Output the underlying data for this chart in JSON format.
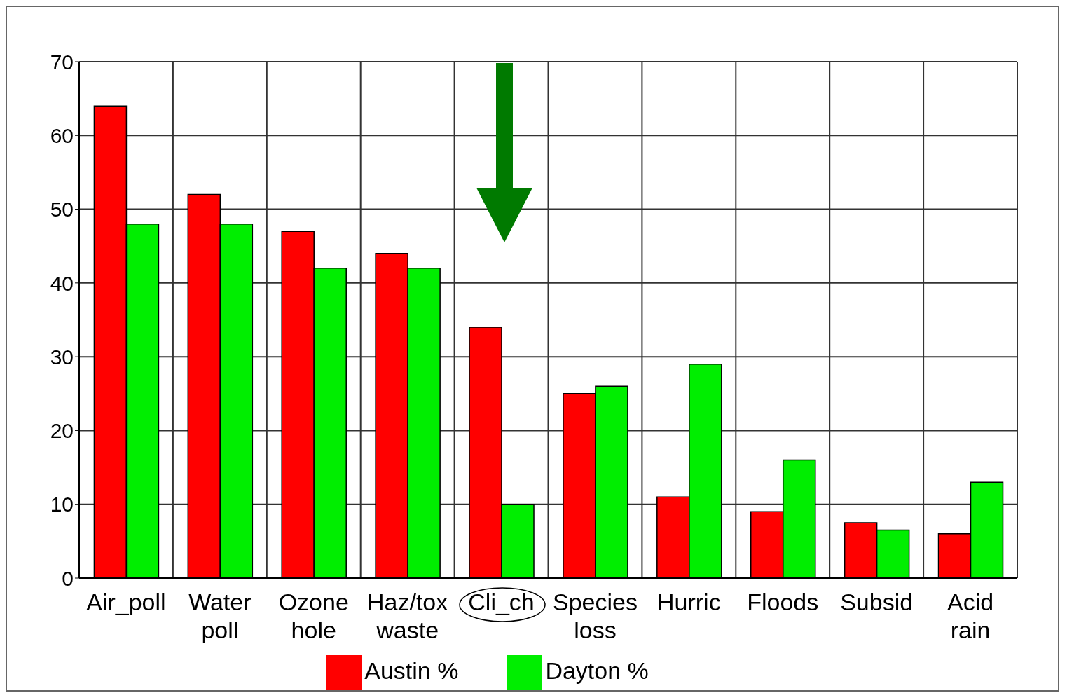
{
  "chart_data": {
    "type": "bar",
    "categories": [
      "Air_poll",
      "Water poll",
      "Ozone hole",
      "Haz/tox waste",
      "Cli_ch",
      "Species loss",
      "Hurric",
      "Floods",
      "Subsid",
      "Acid rain"
    ],
    "series": [
      {
        "name": "Austin %",
        "color": "#ff0000",
        "values": [
          64,
          52,
          47,
          44,
          34,
          25,
          11,
          9,
          7.5,
          6
        ]
      },
      {
        "name": "Dayton %",
        "color": "#00ee00",
        "values": [
          48,
          48,
          42,
          42,
          10,
          26,
          29,
          16,
          6.5,
          13
        ]
      }
    ],
    "ylim": [
      0,
      70
    ],
    "yticks": [
      0,
      10,
      20,
      30,
      40,
      50,
      60,
      70
    ],
    "grid": true,
    "legend": "bottom"
  }
}
